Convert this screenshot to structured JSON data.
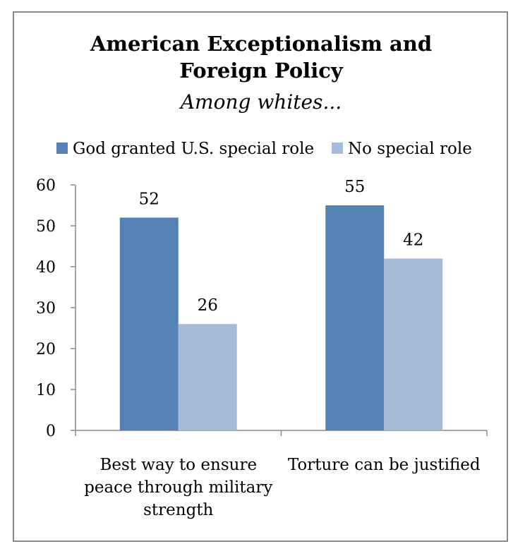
{
  "chart_data": {
    "type": "bar",
    "title": "American Exceptionalism and Foreign Policy",
    "title_lines": [
      "American Exceptionalism and",
      "Foreign Policy"
    ],
    "subtitle": "Among whites...",
    "categories": [
      "Best way to ensure peace through military strength",
      "Torture can be justified"
    ],
    "category_lines": [
      [
        "Best way to ensure",
        "peace through military",
        "strength"
      ],
      [
        "Torture can be justified"
      ]
    ],
    "series": [
      {
        "name": "God granted U.S. special role",
        "values": [
          52,
          55
        ],
        "color": "#5582b4"
      },
      {
        "name": "No special role",
        "values": [
          26,
          42
        ],
        "color": "#a6bbda"
      }
    ],
    "ylim": [
      0,
      60
    ],
    "yticks": [
      0,
      10,
      20,
      30,
      40,
      50,
      60
    ],
    "grid": false,
    "legend": "top",
    "axis_color": "#8a8a8a"
  }
}
